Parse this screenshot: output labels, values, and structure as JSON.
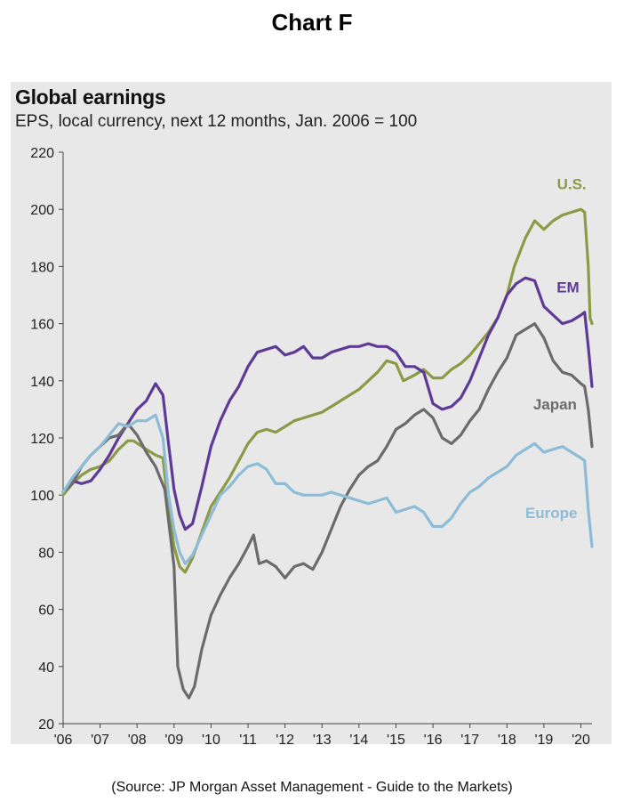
{
  "page": {
    "heading": "Chart F",
    "source": "(Source:  JP Morgan Asset Management - Guide to the Markets)"
  },
  "chart_data": {
    "type": "line",
    "title": "Global earnings",
    "subtitle": "EPS, local currency, next 12 months, Jan. 2006 = 100",
    "xlabel": "",
    "ylabel": "",
    "xlim": [
      2006.0,
      2020.3
    ],
    "ylim": [
      20,
      220
    ],
    "yticks": [
      20,
      40,
      60,
      80,
      100,
      120,
      140,
      160,
      180,
      200,
      220
    ],
    "xticks": [
      {
        "value": 2006,
        "label": "'06"
      },
      {
        "value": 2007,
        "label": "'07"
      },
      {
        "value": 2008,
        "label": "'08"
      },
      {
        "value": 2009,
        "label": "'09"
      },
      {
        "value": 2010,
        "label": "'10"
      },
      {
        "value": 2011,
        "label": "'11"
      },
      {
        "value": 2012,
        "label": "'12"
      },
      {
        "value": 2013,
        "label": "'13"
      },
      {
        "value": 2014,
        "label": "'14"
      },
      {
        "value": 2015,
        "label": "'15"
      },
      {
        "value": 2016,
        "label": "'16"
      },
      {
        "value": 2017,
        "label": "'17"
      },
      {
        "value": 2018,
        "label": "'18"
      },
      {
        "value": 2019,
        "label": "'19"
      },
      {
        "value": 2020,
        "label": "'20"
      }
    ],
    "grid": false,
    "series": [
      {
        "name": "U.S.",
        "color": "#8c9a45",
        "points": [
          [
            2006.0,
            100
          ],
          [
            2006.25,
            104
          ],
          [
            2006.5,
            107
          ],
          [
            2006.75,
            109
          ],
          [
            2007.0,
            110
          ],
          [
            2007.25,
            112
          ],
          [
            2007.5,
            116
          ],
          [
            2007.75,
            119
          ],
          [
            2007.9,
            119
          ],
          [
            2008.25,
            116
          ],
          [
            2008.5,
            114
          ],
          [
            2008.7,
            113
          ],
          [
            2008.85,
            95
          ],
          [
            2009.0,
            82
          ],
          [
            2009.15,
            75
          ],
          [
            2009.3,
            73
          ],
          [
            2009.5,
            78
          ],
          [
            2009.75,
            87
          ],
          [
            2010.0,
            96
          ],
          [
            2010.25,
            101
          ],
          [
            2010.5,
            106
          ],
          [
            2010.75,
            112
          ],
          [
            2011.0,
            118
          ],
          [
            2011.25,
            122
          ],
          [
            2011.5,
            123
          ],
          [
            2011.75,
            122
          ],
          [
            2012.0,
            124
          ],
          [
            2012.25,
            126
          ],
          [
            2012.5,
            127
          ],
          [
            2012.75,
            128
          ],
          [
            2013.0,
            129
          ],
          [
            2013.25,
            131
          ],
          [
            2013.5,
            133
          ],
          [
            2013.75,
            135
          ],
          [
            2014.0,
            137
          ],
          [
            2014.25,
            140
          ],
          [
            2014.5,
            143
          ],
          [
            2014.75,
            147
          ],
          [
            2015.0,
            146
          ],
          [
            2015.2,
            140
          ],
          [
            2015.5,
            142
          ],
          [
            2015.75,
            144
          ],
          [
            2016.0,
            141
          ],
          [
            2016.25,
            141
          ],
          [
            2016.5,
            144
          ],
          [
            2016.75,
            146
          ],
          [
            2017.0,
            149
          ],
          [
            2017.25,
            153
          ],
          [
            2017.5,
            157
          ],
          [
            2017.75,
            162
          ],
          [
            2018.0,
            170
          ],
          [
            2018.2,
            180
          ],
          [
            2018.5,
            190
          ],
          [
            2018.75,
            196
          ],
          [
            2019.0,
            193
          ],
          [
            2019.25,
            196
          ],
          [
            2019.5,
            198
          ],
          [
            2019.75,
            199
          ],
          [
            2020.0,
            200
          ],
          [
            2020.1,
            199
          ],
          [
            2020.2,
            180
          ],
          [
            2020.25,
            162
          ],
          [
            2020.3,
            160
          ]
        ]
      },
      {
        "name": "EM",
        "color": "#5e3a96",
        "points": [
          [
            2006.0,
            101
          ],
          [
            2006.25,
            105
          ],
          [
            2006.5,
            104
          ],
          [
            2006.75,
            105
          ],
          [
            2007.0,
            109
          ],
          [
            2007.25,
            114
          ],
          [
            2007.5,
            120
          ],
          [
            2007.75,
            125
          ],
          [
            2008.0,
            130
          ],
          [
            2008.25,
            133
          ],
          [
            2008.5,
            139
          ],
          [
            2008.7,
            135
          ],
          [
            2008.85,
            118
          ],
          [
            2009.0,
            102
          ],
          [
            2009.15,
            93
          ],
          [
            2009.3,
            88
          ],
          [
            2009.5,
            90
          ],
          [
            2009.75,
            103
          ],
          [
            2010.0,
            117
          ],
          [
            2010.25,
            126
          ],
          [
            2010.5,
            133
          ],
          [
            2010.75,
            138
          ],
          [
            2011.0,
            145
          ],
          [
            2011.25,
            150
          ],
          [
            2011.5,
            151
          ],
          [
            2011.75,
            152
          ],
          [
            2012.0,
            149
          ],
          [
            2012.25,
            150
          ],
          [
            2012.5,
            152
          ],
          [
            2012.75,
            148
          ],
          [
            2013.0,
            148
          ],
          [
            2013.25,
            150
          ],
          [
            2013.5,
            151
          ],
          [
            2013.75,
            152
          ],
          [
            2014.0,
            152
          ],
          [
            2014.25,
            153
          ],
          [
            2014.5,
            152
          ],
          [
            2014.75,
            152
          ],
          [
            2015.0,
            150
          ],
          [
            2015.25,
            145
          ],
          [
            2015.5,
            145
          ],
          [
            2015.75,
            143
          ],
          [
            2016.0,
            132
          ],
          [
            2016.25,
            130
          ],
          [
            2016.5,
            131
          ],
          [
            2016.75,
            134
          ],
          [
            2017.0,
            140
          ],
          [
            2017.25,
            148
          ],
          [
            2017.5,
            156
          ],
          [
            2017.75,
            162
          ],
          [
            2018.0,
            170
          ],
          [
            2018.25,
            174
          ],
          [
            2018.5,
            176
          ],
          [
            2018.75,
            175
          ],
          [
            2019.0,
            166
          ],
          [
            2019.25,
            163
          ],
          [
            2019.5,
            160
          ],
          [
            2019.75,
            161
          ],
          [
            2020.0,
            163
          ],
          [
            2020.1,
            164
          ],
          [
            2020.2,
            152
          ],
          [
            2020.3,
            138
          ]
        ]
      },
      {
        "name": "Japan",
        "color": "#6b6b6b",
        "points": [
          [
            2006.0,
            101
          ],
          [
            2006.25,
            104
          ],
          [
            2006.5,
            110
          ],
          [
            2006.75,
            114
          ],
          [
            2007.0,
            117
          ],
          [
            2007.25,
            120
          ],
          [
            2007.5,
            121
          ],
          [
            2007.75,
            125
          ],
          [
            2008.0,
            121
          ],
          [
            2008.25,
            115
          ],
          [
            2008.5,
            110
          ],
          [
            2008.75,
            102
          ],
          [
            2009.0,
            75
          ],
          [
            2009.1,
            40
          ],
          [
            2009.25,
            32
          ],
          [
            2009.4,
            29
          ],
          [
            2009.55,
            33
          ],
          [
            2009.75,
            46
          ],
          [
            2010.0,
            58
          ],
          [
            2010.25,
            65
          ],
          [
            2010.5,
            71
          ],
          [
            2010.75,
            76
          ],
          [
            2011.0,
            82
          ],
          [
            2011.15,
            86
          ],
          [
            2011.3,
            76
          ],
          [
            2011.5,
            77
          ],
          [
            2011.75,
            75
          ],
          [
            2012.0,
            71
          ],
          [
            2012.25,
            75
          ],
          [
            2012.5,
            76
          ],
          [
            2012.75,
            74
          ],
          [
            2013.0,
            80
          ],
          [
            2013.25,
            88
          ],
          [
            2013.5,
            96
          ],
          [
            2013.75,
            102
          ],
          [
            2014.0,
            107
          ],
          [
            2014.25,
            110
          ],
          [
            2014.5,
            112
          ],
          [
            2014.75,
            117
          ],
          [
            2015.0,
            123
          ],
          [
            2015.25,
            125
          ],
          [
            2015.5,
            128
          ],
          [
            2015.75,
            130
          ],
          [
            2016.0,
            127
          ],
          [
            2016.25,
            120
          ],
          [
            2016.5,
            118
          ],
          [
            2016.75,
            121
          ],
          [
            2017.0,
            126
          ],
          [
            2017.25,
            130
          ],
          [
            2017.5,
            137
          ],
          [
            2017.75,
            143
          ],
          [
            2018.0,
            148
          ],
          [
            2018.25,
            156
          ],
          [
            2018.5,
            158
          ],
          [
            2018.75,
            160
          ],
          [
            2019.0,
            155
          ],
          [
            2019.25,
            147
          ],
          [
            2019.5,
            143
          ],
          [
            2019.75,
            142
          ],
          [
            2020.0,
            139
          ],
          [
            2020.1,
            138
          ],
          [
            2020.2,
            130
          ],
          [
            2020.3,
            117
          ]
        ]
      },
      {
        "name": "Europe",
        "color": "#8dbcd6",
        "points": [
          [
            2006.0,
            101
          ],
          [
            2006.25,
            106
          ],
          [
            2006.5,
            110
          ],
          [
            2006.75,
            114
          ],
          [
            2007.0,
            117
          ],
          [
            2007.25,
            121
          ],
          [
            2007.5,
            125
          ],
          [
            2007.75,
            124
          ],
          [
            2008.0,
            126
          ],
          [
            2008.25,
            126
          ],
          [
            2008.5,
            128
          ],
          [
            2008.7,
            120
          ],
          [
            2008.85,
            100
          ],
          [
            2009.0,
            88
          ],
          [
            2009.15,
            80
          ],
          [
            2009.3,
            76
          ],
          [
            2009.5,
            79
          ],
          [
            2009.75,
            86
          ],
          [
            2010.0,
            93
          ],
          [
            2010.25,
            100
          ],
          [
            2010.5,
            103
          ],
          [
            2010.75,
            107
          ],
          [
            2011.0,
            110
          ],
          [
            2011.25,
            111
          ],
          [
            2011.5,
            109
          ],
          [
            2011.75,
            104
          ],
          [
            2012.0,
            104
          ],
          [
            2012.25,
            101
          ],
          [
            2012.5,
            100
          ],
          [
            2012.75,
            100
          ],
          [
            2013.0,
            100
          ],
          [
            2013.25,
            101
          ],
          [
            2013.5,
            100
          ],
          [
            2013.75,
            99
          ],
          [
            2014.0,
            98
          ],
          [
            2014.25,
            97
          ],
          [
            2014.5,
            98
          ],
          [
            2014.75,
            99
          ],
          [
            2015.0,
            94
          ],
          [
            2015.25,
            95
          ],
          [
            2015.5,
            96
          ],
          [
            2015.75,
            94
          ],
          [
            2016.0,
            89
          ],
          [
            2016.25,
            89
          ],
          [
            2016.5,
            92
          ],
          [
            2016.75,
            97
          ],
          [
            2017.0,
            101
          ],
          [
            2017.25,
            103
          ],
          [
            2017.5,
            106
          ],
          [
            2017.75,
            108
          ],
          [
            2018.0,
            110
          ],
          [
            2018.25,
            114
          ],
          [
            2018.5,
            116
          ],
          [
            2018.75,
            118
          ],
          [
            2019.0,
            115
          ],
          [
            2019.25,
            116
          ],
          [
            2019.5,
            117
          ],
          [
            2019.75,
            115
          ],
          [
            2020.0,
            113
          ],
          [
            2020.1,
            112
          ],
          [
            2020.2,
            95
          ],
          [
            2020.3,
            82
          ]
        ]
      }
    ],
    "labels": [
      {
        "series": "U.S.",
        "text": "U.S.",
        "x": 2019.75,
        "y": 207
      },
      {
        "series": "EM",
        "text": "EM",
        "x": 2019.65,
        "y": 171
      },
      {
        "series": "Japan",
        "text": "Japan",
        "x": 2019.3,
        "y": 130
      },
      {
        "series": "Europe",
        "text": "Europe",
        "x": 2019.2,
        "y": 92
      }
    ]
  }
}
